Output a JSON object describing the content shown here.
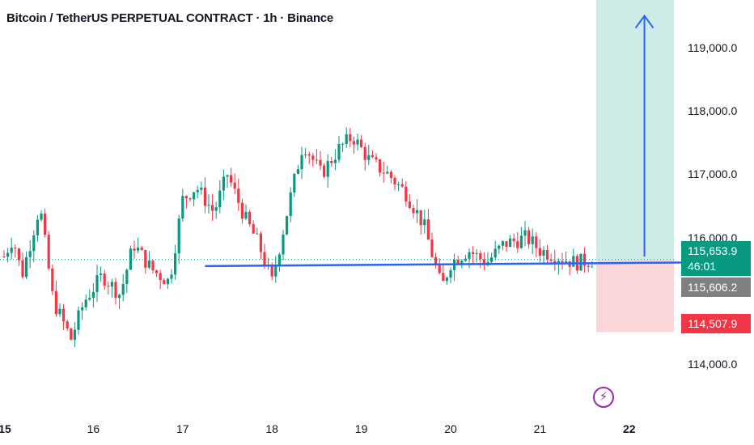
{
  "header": {
    "title": "Bitcoin / TetherUS PERPETUAL CONTRACT · 1h · Binance"
  },
  "price_tags": {
    "current_price": "115,653.9",
    "countdown": "46:01",
    "line_price": "115,606.2",
    "stop_price": "114,507.9"
  },
  "colors": {
    "up": "#089981",
    "down": "#f23645",
    "line": "#2962ff",
    "target_zone": "#cdece7",
    "stop_zone": "#fbd6d9"
  },
  "alert": {
    "icon": "lightning-icon",
    "glyph": "⚡"
  },
  "chart_data": {
    "type": "candlestick",
    "timeframe": "1h",
    "ylim": [
      113300,
      119750
    ],
    "y_ticks": [
      {
        "value": 119000,
        "label": "119,000.0"
      },
      {
        "value": 118000,
        "label": "118,000.0"
      },
      {
        "value": 117000,
        "label": "117,000.0"
      },
      {
        "value": 116000,
        "label": "116,000.0"
      },
      {
        "value": 114000,
        "label": "114,000.0"
      }
    ],
    "x_ticks": [
      {
        "label": "15",
        "day": 15,
        "bold": true
      },
      {
        "label": "16",
        "day": 16,
        "bold": false
      },
      {
        "label": "17",
        "day": 17,
        "bold": false
      },
      {
        "label": "18",
        "day": 18,
        "bold": false
      },
      {
        "label": "19",
        "day": 19,
        "bold": false
      },
      {
        "label": "20",
        "day": 20,
        "bold": false
      },
      {
        "label": "21",
        "day": 21,
        "bold": false
      },
      {
        "label": "22",
        "day": 22,
        "bold": true
      }
    ],
    "price_path_knots": [
      {
        "day": 15.0,
        "price": 115700
      },
      {
        "day": 15.1,
        "price": 116000
      },
      {
        "day": 15.2,
        "price": 115400
      },
      {
        "day": 15.4,
        "price": 116500
      },
      {
        "day": 15.55,
        "price": 115000
      },
      {
        "day": 15.75,
        "price": 114400
      },
      {
        "day": 15.9,
        "price": 115000
      },
      {
        "day": 16.1,
        "price": 115400
      },
      {
        "day": 16.3,
        "price": 115100
      },
      {
        "day": 16.45,
        "price": 115900
      },
      {
        "day": 16.65,
        "price": 115500
      },
      {
        "day": 16.85,
        "price": 115300
      },
      {
        "day": 17.0,
        "price": 116600
      },
      {
        "day": 17.15,
        "price": 116800
      },
      {
        "day": 17.35,
        "price": 116400
      },
      {
        "day": 17.5,
        "price": 117000
      },
      {
        "day": 17.7,
        "price": 116300
      },
      {
        "day": 17.85,
        "price": 115900
      },
      {
        "day": 18.0,
        "price": 115300
      },
      {
        "day": 18.2,
        "price": 116600
      },
      {
        "day": 18.35,
        "price": 117500
      },
      {
        "day": 18.55,
        "price": 117000
      },
      {
        "day": 18.75,
        "price": 117400
      },
      {
        "day": 18.9,
        "price": 117600
      },
      {
        "day": 19.1,
        "price": 117200
      },
      {
        "day": 19.3,
        "price": 117000
      },
      {
        "day": 19.5,
        "price": 116700
      },
      {
        "day": 19.7,
        "price": 116200
      },
      {
        "day": 19.9,
        "price": 115200
      },
      {
        "day": 20.0,
        "price": 115600
      },
      {
        "day": 20.2,
        "price": 115800
      },
      {
        "day": 20.4,
        "price": 115600
      },
      {
        "day": 20.6,
        "price": 115900
      },
      {
        "day": 20.85,
        "price": 116000
      },
      {
        "day": 21.0,
        "price": 115800
      },
      {
        "day": 21.2,
        "price": 115700
      },
      {
        "day": 21.4,
        "price": 115600
      },
      {
        "day": 21.6,
        "price": 115650
      }
    ],
    "horizontal_line": {
      "from_day": 17.25,
      "to_day": 22.7,
      "price_start": 115550,
      "price_end": 115606.2
    },
    "current_price_line": 115653.9,
    "position": {
      "from_day": 21.63,
      "to_day": 22.5,
      "entry": 115653.9,
      "target": 119750,
      "stop": 114507.9
    },
    "target_arrow": {
      "day": 22.17,
      "from_price": 115700,
      "to_price": 119500
    }
  }
}
